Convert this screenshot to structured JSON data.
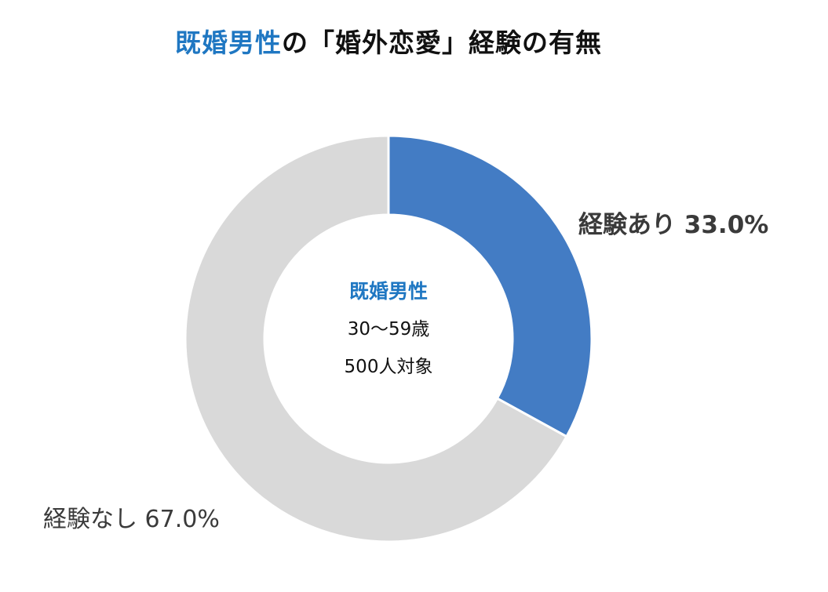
{
  "title": {
    "accent": "既婚男性",
    "rest": "の「婚外恋愛」経験の有無"
  },
  "center": {
    "title": "既婚男性",
    "age": "30〜59歳",
    "sample": "500人対象"
  },
  "colors": {
    "accent": "#1f77c2",
    "yes": "#437cc4",
    "no": "#d9d9d9"
  },
  "chart_data": {
    "type": "pie",
    "donut": true,
    "unit": "%",
    "categories": [
      "経験あり",
      "経験なし"
    ],
    "values": [
      33.0,
      67.0
    ],
    "labels": [
      "経験あり 33.0%",
      "経験なし 67.0%"
    ],
    "colors": [
      "#437cc4",
      "#d9d9d9"
    ],
    "start_angle": "12 o'clock",
    "direction": "clockwise",
    "legend": false
  }
}
